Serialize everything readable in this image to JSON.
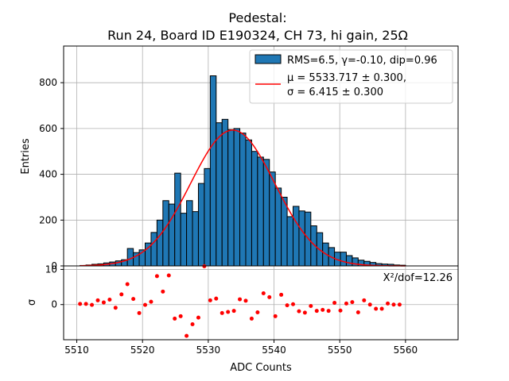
{
  "chart_data": {
    "type": "bar",
    "title": "Pedestal:",
    "subtitle": "Run 24, Board ID E190324, CH 73, hi gain, 25Ω",
    "xlabel": "ADC Counts",
    "ylabel": "Entries",
    "residual_ylabel": "σ",
    "xlim": [
      5508,
      5568
    ],
    "ylim": [
      0,
      960
    ],
    "residual_ylim": [
      -10,
      11
    ],
    "x_ticks": [
      5510,
      5520,
      5530,
      5540,
      5550,
      5560
    ],
    "y_ticks": [
      0,
      200,
      400,
      600,
      800
    ],
    "residual_ticks": [
      0,
      10
    ],
    "grid": true,
    "legend_position": "top-right",
    "histogram": {
      "name": "RMS=6.5, γ=-0.10, dip=0.96",
      "color": "#1f77b4",
      "bin_width": 0.9,
      "bin_start": 5510.5,
      "counts": [
        2,
        4,
        7,
        9,
        13,
        17,
        22,
        27,
        76,
        58,
        70,
        100,
        146,
        200,
        285,
        270,
        405,
        230,
        285,
        237,
        360,
        425,
        830,
        625,
        640,
        595,
        600,
        580,
        550,
        500,
        475,
        465,
        410,
        340,
        300,
        215,
        260,
        240,
        235,
        175,
        145,
        100,
        80,
        60,
        60,
        45,
        35,
        25,
        20,
        15,
        10,
        8,
        7,
        4,
        3
      ]
    },
    "fit": {
      "name_line1": "μ = 5533.717 ± 0.300,",
      "name_line2": "σ = 6.415 ± 0.300",
      "color": "#ff0000",
      "mu": 5533.717,
      "sigma": 6.415,
      "amplitude": 593
    },
    "residuals": {
      "color": "#ff0000",
      "x": [
        5510.5,
        5511.4,
        5512.3,
        5513.2,
        5514.1,
        5515.0,
        5515.9,
        5516.8,
        5517.7,
        5518.6,
        5519.5,
        5520.4,
        5521.3,
        5522.2,
        5523.1,
        5524.0,
        5524.9,
        5525.8,
        5526.7,
        5527.6,
        5528.5,
        5529.4,
        5530.3,
        5531.2,
        5532.1,
        5533.0,
        5533.9,
        5534.8,
        5535.7,
        5536.6,
        5537.5,
        5538.4,
        5539.3,
        5540.2,
        5541.1,
        5542.0,
        5542.9,
        5543.8,
        5544.7,
        5545.6,
        5546.5,
        5547.4,
        5548.3,
        5549.2,
        5550.1,
        5551.0,
        5551.9,
        5552.8,
        5553.7,
        5554.6,
        5555.5,
        5556.4,
        5557.3,
        5558.2,
        5559.1
      ],
      "y": [
        0.2,
        0.2,
        -0.1,
        1.2,
        0.6,
        1.4,
        -0.9,
        2.9,
        5.8,
        1.6,
        -2.4,
        -0.1,
        0.8,
        8.1,
        3.7,
        8.3,
        -4.0,
        -3.3,
        -8.9,
        -5.6,
        -3.7,
        10.9,
        1.2,
        1.7,
        -2.4,
        -2.1,
        -1.8,
        1.5,
        1.1,
        -4.0,
        -2.2,
        3.2,
        2.1,
        -3.3,
        2.8,
        -0.2,
        0.1,
        -1.9,
        -2.3,
        -0.4,
        -1.8,
        -1.5,
        -1.8,
        0.5,
        -1.7,
        0.3,
        0.7,
        -2.2,
        1.2,
        0.0,
        -1.2,
        -1.2,
        0.3,
        0.0,
        0.0
      ]
    },
    "chi2_label": "X²/dof=12.26"
  }
}
